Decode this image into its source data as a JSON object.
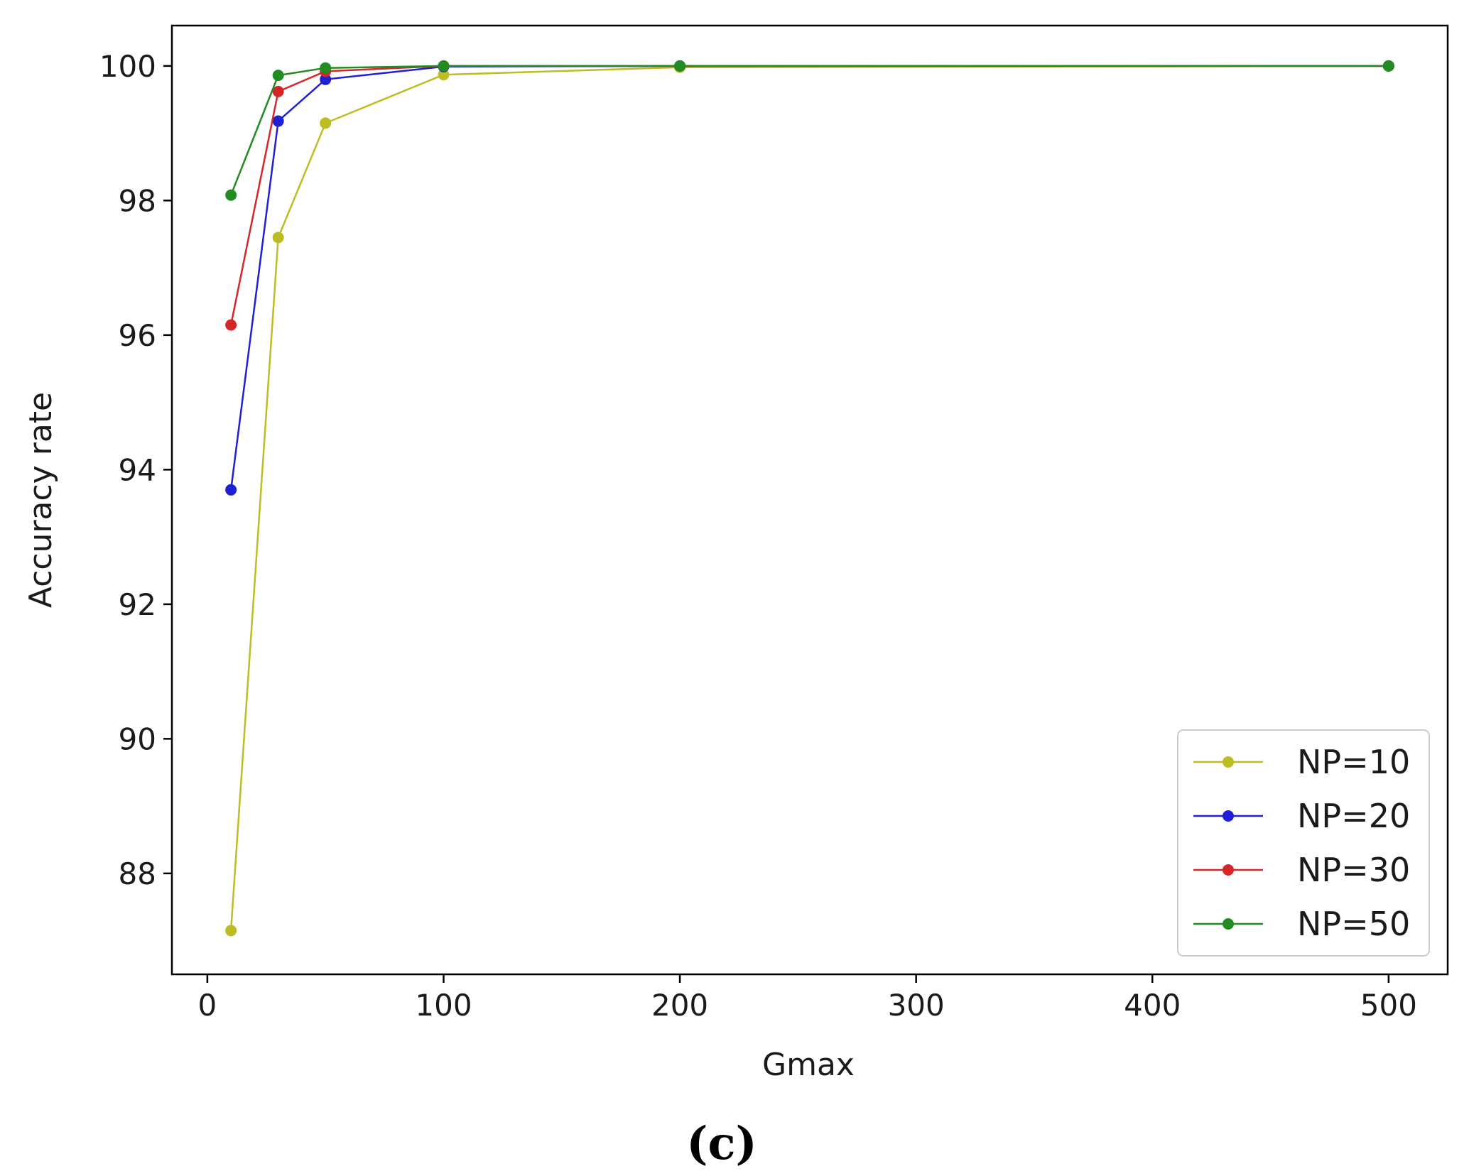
{
  "chart_data": {
    "type": "line",
    "xlabel": "Gmax",
    "ylabel": "Accuracy rate",
    "caption": "(c)",
    "xlim": [
      -15,
      525
    ],
    "ylim": [
      86.5,
      100.6
    ],
    "xticks": [
      0,
      100,
      200,
      300,
      400,
      500
    ],
    "yticks": [
      88,
      90,
      92,
      94,
      96,
      98,
      100
    ],
    "xtick_labels": [
      "0",
      "100",
      "200",
      "300",
      "400",
      "500"
    ],
    "ytick_labels": [
      "88",
      "90",
      "92",
      "94",
      "96",
      "98",
      "100"
    ],
    "grid": false,
    "legend_position": "lower-right",
    "x": [
      10,
      30,
      50,
      100,
      200,
      500
    ],
    "series": [
      {
        "name": "NP=10",
        "color": "#bcbd22",
        "values": [
          87.15,
          97.45,
          99.15,
          99.87,
          99.98,
          100.0
        ]
      },
      {
        "name": "NP=20",
        "color": "#1f1fd6",
        "values": [
          93.7,
          99.18,
          99.8,
          99.99,
          100.0,
          100.0
        ]
      },
      {
        "name": "NP=30",
        "color": "#d62728",
        "values": [
          96.15,
          99.62,
          99.92,
          100.0,
          100.0,
          100.0
        ]
      },
      {
        "name": "NP=50",
        "color": "#228b22",
        "values": [
          98.08,
          99.86,
          99.97,
          100.0,
          100.0,
          100.0
        ]
      }
    ]
  }
}
